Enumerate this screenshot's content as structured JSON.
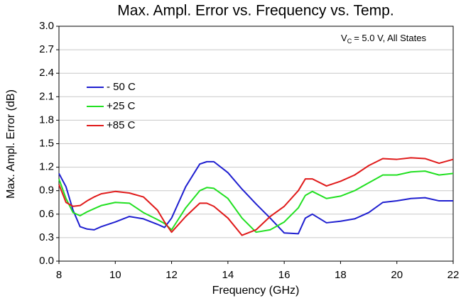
{
  "chart_data": {
    "type": "line",
    "title": "Max. Ampl. Error vs. Frequency vs. Temp.",
    "annotation_main": "V",
    "annotation_sub": "C",
    "annotation_rest": "= 5.0 V, All States",
    "x_label": "Frequency (GHz)",
    "y_label": "Max. Ampl. Error (dB)",
    "x": [
      8,
      8.25,
      8.5,
      8.75,
      9,
      9.25,
      9.5,
      10,
      10.5,
      11,
      11.5,
      11.75,
      12,
      12.5,
      13,
      13.25,
      13.5,
      14,
      14.5,
      15,
      15.5,
      16,
      16.5,
      16.75,
      17,
      17.5,
      18,
      18.5,
      19,
      19.5,
      20,
      20.5,
      21,
      21.5,
      22
    ],
    "series": [
      {
        "name": "- 50 C",
        "color": "#1f1fd0",
        "values": [
          1.12,
          0.95,
          0.65,
          0.44,
          0.41,
          0.4,
          0.44,
          0.5,
          0.57,
          0.54,
          0.47,
          0.43,
          0.55,
          0.95,
          1.24,
          1.27,
          1.27,
          1.13,
          0.92,
          0.73,
          0.55,
          0.36,
          0.35,
          0.55,
          0.6,
          0.49,
          0.51,
          0.54,
          0.62,
          0.75,
          0.77,
          0.8,
          0.81,
          0.77,
          0.77
        ]
      },
      {
        "name": "+25 C",
        "color": "#22e022",
        "values": [
          1.05,
          0.8,
          0.62,
          0.58,
          0.63,
          0.67,
          0.71,
          0.75,
          0.74,
          0.62,
          0.53,
          0.48,
          0.4,
          0.68,
          0.9,
          0.94,
          0.93,
          0.8,
          0.55,
          0.37,
          0.4,
          0.5,
          0.68,
          0.84,
          0.89,
          0.8,
          0.83,
          0.9,
          1.0,
          1.1,
          1.1,
          1.14,
          1.15,
          1.1,
          1.12
        ]
      },
      {
        "name": "+85 C",
        "color": "#e01a1a",
        "values": [
          0.98,
          0.75,
          0.7,
          0.71,
          0.77,
          0.82,
          0.86,
          0.89,
          0.87,
          0.82,
          0.65,
          0.5,
          0.37,
          0.57,
          0.74,
          0.74,
          0.7,
          0.55,
          0.33,
          0.4,
          0.57,
          0.7,
          0.9,
          1.05,
          1.05,
          0.96,
          1.02,
          1.1,
          1.22,
          1.31,
          1.3,
          1.32,
          1.31,
          1.25,
          1.3
        ]
      }
    ],
    "xlim": [
      8,
      22
    ],
    "xticks": [
      8,
      10,
      12,
      14,
      16,
      18,
      20,
      22
    ],
    "ylim": [
      0,
      3
    ],
    "yticks": [
      {
        "value": 0,
        "label": "0.0"
      },
      0.3,
      0.6,
      0.9,
      1.2,
      1.5,
      1.8,
      2.1,
      2.4,
      2.7,
      {
        "value": 3,
        "label": "3.0"
      }
    ],
    "grid": true,
    "legend": "upper-left"
  }
}
